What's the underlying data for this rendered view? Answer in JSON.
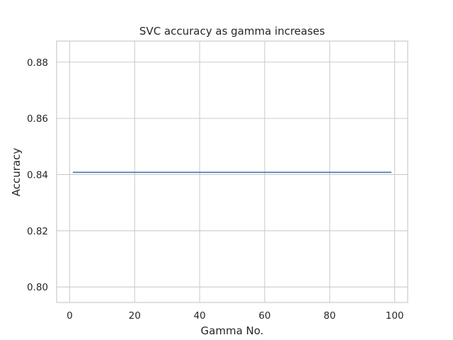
{
  "chart_data": {
    "type": "line",
    "title": "SVC accuracy as gamma increases",
    "xlabel": "Gamma No.",
    "ylabel": "Accuracy",
    "xlim": [
      -4.0,
      104.0
    ],
    "ylim": [
      0.7945,
      0.8875
    ],
    "xticks": [
      0,
      20,
      40,
      60,
      80,
      100
    ],
    "xtick_labels": [
      "0",
      "20",
      "40",
      "60",
      "80",
      "100"
    ],
    "yticks": [
      0.8,
      0.82,
      0.84,
      0.86,
      0.88
    ],
    "ytick_labels": [
      "0.80",
      "0.82",
      "0.84",
      "0.86",
      "0.88"
    ],
    "grid": true,
    "series": [
      {
        "color": "#4c72b0",
        "x": [
          1,
          99
        ],
        "y": [
          0.8408,
          0.8408
        ]
      }
    ]
  }
}
